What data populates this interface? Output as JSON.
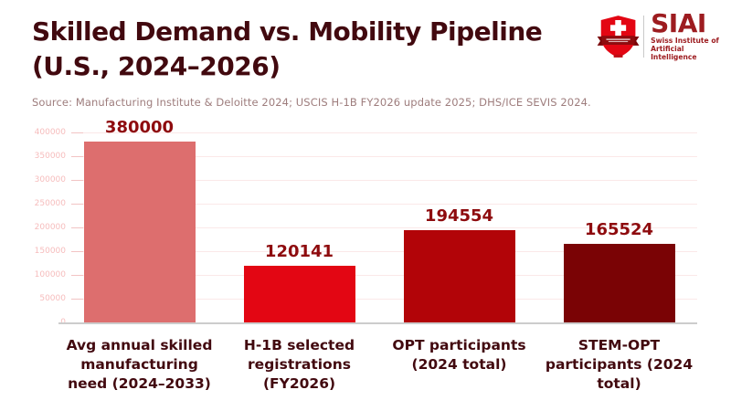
{
  "header": {
    "title_lines": [
      "Skilled Demand vs. Mobility Pipeline",
      "(U.S., 2024–2026)"
    ],
    "source": "Source: Manufacturing Institute & Deloitte 2024; USCIS H-1B FY2026 update 2025; DHS/ICE SEVIS 2024."
  },
  "logo": {
    "acronym": "SIAI",
    "subtitle_lines": [
      "Swiss Institute of",
      "Artificial Intelligence"
    ],
    "shield_icon": "swiss-shield-icon",
    "colors": {
      "shield_red": "#e30613",
      "banner_dark": "#8f0b0e",
      "text": "#9d1c20"
    }
  },
  "chart_data": {
    "type": "bar",
    "title": "Skilled Demand vs. Mobility Pipeline (U.S., 2024–2026)",
    "categories": [
      "Avg annual skilled manufacturing need (2024–2033)",
      "H-1B selected registrations (FY2026)",
      "OPT participants (2024 total)",
      "STEM-OPT participants (2024 total)"
    ],
    "values": [
      380000,
      120141,
      194554,
      165524
    ],
    "value_labels": [
      "380000",
      "120141",
      "194554",
      "165524"
    ],
    "bar_colors": [
      "#dd6e6e",
      "#e30613",
      "#b20408",
      "#7a0305"
    ],
    "xlabel": "",
    "ylabel": "",
    "ylim": [
      0,
      400000
    ],
    "yticks": [
      0,
      50000,
      100000,
      150000,
      200000,
      250000,
      300000,
      350000,
      400000
    ],
    "grid": true,
    "legend_position": "none"
  },
  "theme": {
    "background": "#ffffff",
    "title_color": "#42090f",
    "source_color": "#9e7d7d",
    "value_label_color": "#8e0b0e",
    "category_label_color": "#42090f",
    "ytick_label_color": "#f6bcbc",
    "gridline_color": "#fbe8e8",
    "tickmark_color": "#f2c4c4",
    "baseline_color": "#cccccc"
  }
}
